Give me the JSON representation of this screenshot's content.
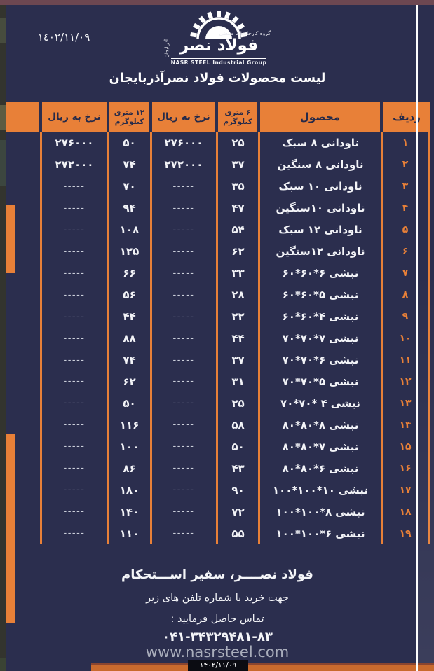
{
  "page": {
    "top_date": "١٤٠٢/١١/٠٩",
    "title": "لیست محصولات فولاد نصرآذربایجان"
  },
  "logo": {
    "brand": "فولاد نصر",
    "group_fa": "گروه کارخانجات صنعتی",
    "group_en": "NASR STEEL Industrial Group",
    "side": "آذربایجان"
  },
  "table": {
    "headers": {
      "radif": "ردیف",
      "product": "محصول",
      "kg6_l1": "۶ متری",
      "kg6_l2": "کیلوگرم",
      "price6": "نرخ به ریال",
      "kg12_l1": "۱۲ متری",
      "kg12_l2": "کیلوگرم",
      "price12": "نرخ به ریال"
    },
    "rows": [
      {
        "no": "۱",
        "name": "ناودانی ۸ سبک",
        "spec": "",
        "kg6": "۲۵",
        "p6": "۲۷۶۰۰۰",
        "kg12": "۵۰",
        "p12": "۲۷۶۰۰۰"
      },
      {
        "no": "۲",
        "name": "ناودانی ۸ سنگین",
        "spec": "",
        "kg6": "۳۷",
        "p6": "۲۷۲۰۰۰",
        "kg12": "۷۴",
        "p12": "۲۷۲۰۰۰"
      },
      {
        "no": "۳",
        "name": "ناودانی ۱۰ سبک",
        "spec": "",
        "kg6": "۳۵",
        "p6": "-----",
        "kg12": "۷۰",
        "p12": "-----"
      },
      {
        "no": "۴",
        "name": "ناودانی ۱۰سنگین",
        "spec": "",
        "kg6": "۴۷",
        "p6": "-----",
        "kg12": "۹۴",
        "p12": "-----"
      },
      {
        "no": "۵",
        "name": "ناودانی ۱۲ سبک",
        "spec": "",
        "kg6": "۵۴",
        "p6": "-----",
        "kg12": "۱۰۸",
        "p12": "-----"
      },
      {
        "no": "۶",
        "name": "ناودانی ۱۲سنگین",
        "spec": "",
        "kg6": "۶۲",
        "p6": "-----",
        "kg12": "۱۲۵",
        "p12": "-----"
      },
      {
        "no": "۷",
        "name": "نبشی",
        "spec": "۶۰*۶۰*۶",
        "kg6": "۳۳",
        "p6": "-----",
        "kg12": "۶۶",
        "p12": "-----"
      },
      {
        "no": "۸",
        "name": "نبشی",
        "spec": "۶۰*۶۰*۵",
        "kg6": "۲۸",
        "p6": "-----",
        "kg12": "۵۶",
        "p12": "-----"
      },
      {
        "no": "۹",
        "name": "نبشی",
        "spec": "۶۰*۶۰*۴",
        "kg6": "۲۲",
        "p6": "-----",
        "kg12": "۴۴",
        "p12": "-----"
      },
      {
        "no": "۱۰",
        "name": "نبشی",
        "spec": "۷۰*۷۰*۷",
        "kg6": "۴۴",
        "p6": "-----",
        "kg12": "۸۸",
        "p12": "-----"
      },
      {
        "no": "۱۱",
        "name": "نبشی",
        "spec": "۷۰*۷۰*۶",
        "kg6": "۳۷",
        "p6": "-----",
        "kg12": "۷۴",
        "p12": "-----"
      },
      {
        "no": "۱۲",
        "name": "نبشی",
        "spec": "۷۰*۷۰*۵",
        "kg6": "۳۱",
        "p6": "-----",
        "kg12": "۶۲",
        "p12": "-----"
      },
      {
        "no": "۱۳",
        "name": "نبشی",
        "spec": "۷۰*۷۰* ۴",
        "kg6": "۲۵",
        "p6": "-----",
        "kg12": "۵۰",
        "p12": "-----"
      },
      {
        "no": "۱۴",
        "name": "نبشی",
        "spec": "۸۰*۸۰*۸",
        "kg6": "۵۸",
        "p6": "-----",
        "kg12": "۱۱۶",
        "p12": "-----"
      },
      {
        "no": "۱۵",
        "name": "نبشی",
        "spec": "۸۰*۸۰*۷",
        "kg6": "۵۰",
        "p6": "-----",
        "kg12": "۱۰۰",
        "p12": "-----"
      },
      {
        "no": "۱۶",
        "name": "نبشی",
        "spec": "۸۰*۸۰*۶",
        "kg6": "۴۳",
        "p6": "-----",
        "kg12": "۸۶",
        "p12": "-----"
      },
      {
        "no": "۱۷",
        "name": "نبشی",
        "spec": "۱۰۰*۱۰۰*۱۰",
        "kg6": "۹۰",
        "p6": "-----",
        "kg12": "۱۸۰",
        "p12": "-----"
      },
      {
        "no": "۱۸",
        "name": "نبشی",
        "spec": "۱۰۰*۱۰۰*۸",
        "kg6": "۷۲",
        "p6": "-----",
        "kg12": "۱۴۰",
        "p12": "-----"
      },
      {
        "no": "۱۹",
        "name": "نبشی",
        "spec": "۱۰۰*۱۰۰*۶",
        "kg6": "۵۵",
        "p6": "-----",
        "kg12": "۱۱۰",
        "p12": "-----"
      }
    ]
  },
  "footer": {
    "slogan": "فولاد نصــــر، سفیر اســـتحکام",
    "note_line1": "جهت خرید با شماره تلفن های زیر",
    "note_line2": "تماس حاصل فرمایید :",
    "phone": "۰۴۱-۳۴۳۲۹۴۸۱-۸۳",
    "website": "www.nasrsteel.com",
    "stamp_date": "۱۴۰۲/۱۱/۰۹"
  },
  "colors": {
    "accent_orange": "#e88038",
    "navy_background": "#2b2e4e",
    "top_strip_maroon": "#6d4751",
    "stamp_black": "#0b0c12",
    "url_gray": "#a9adbb"
  }
}
